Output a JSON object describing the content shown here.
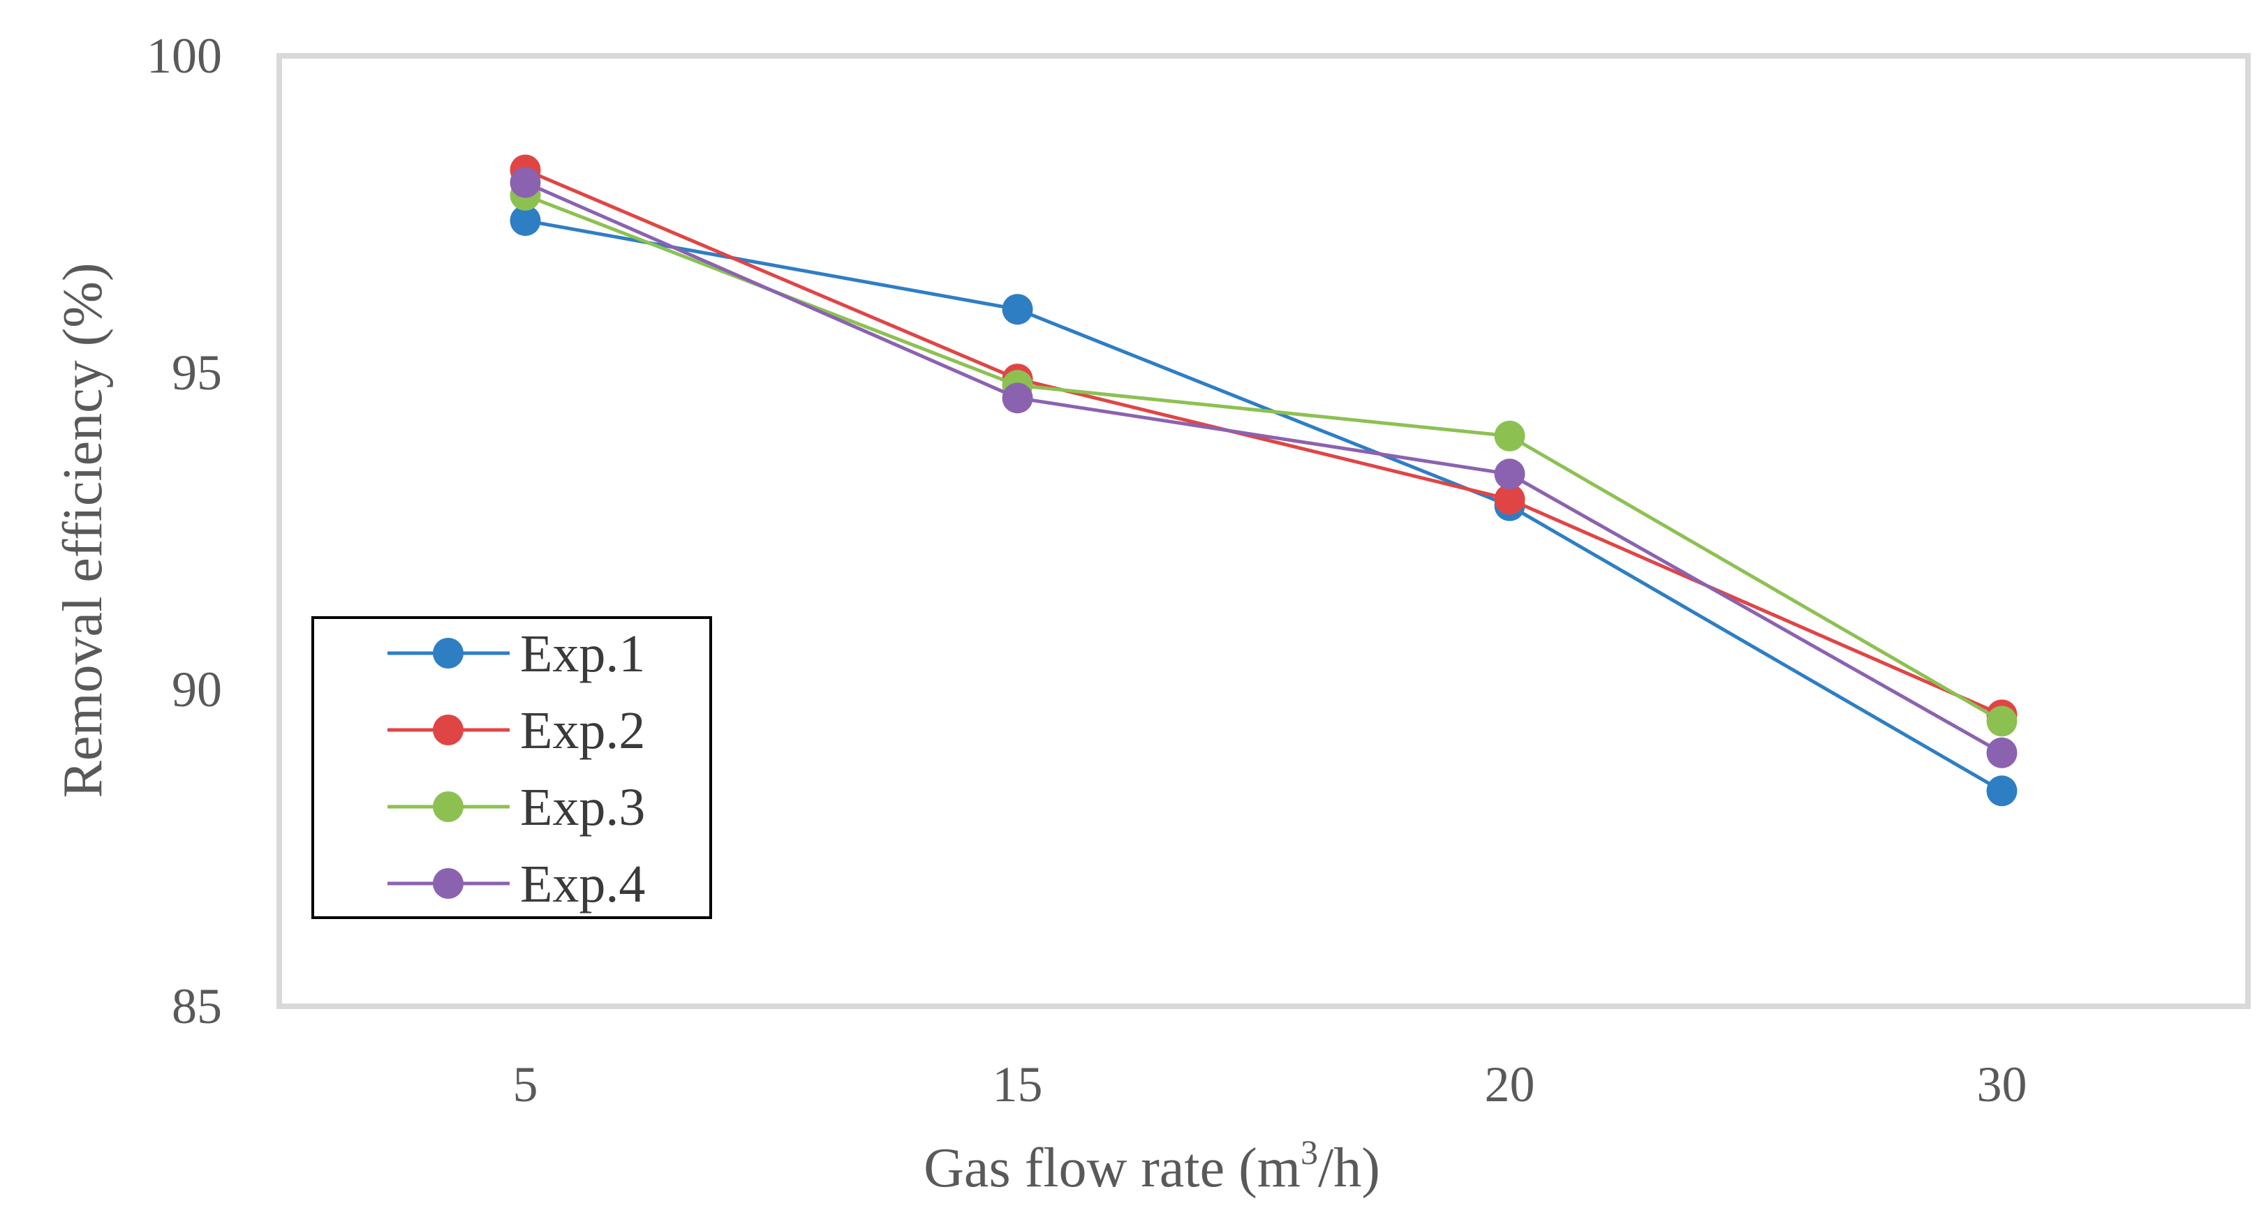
{
  "chart_data": {
    "type": "line",
    "title": "",
    "categories": [
      "5",
      "15",
      "20",
      "30"
    ],
    "xlabel": {
      "prefix": "Gas flow rate (m",
      "superscript": "3",
      "suffix": "/h)"
    },
    "ylabel": "Removal efficiency (%)",
    "ylim": [
      85,
      100
    ],
    "yticks": [
      "85",
      "90",
      "95",
      "100"
    ],
    "legend_position": "left-center",
    "series": [
      {
        "name": "Exp.1",
        "color": "#2E7EC4",
        "values": [
          97.4,
          96.0,
          92.9,
          88.4
        ]
      },
      {
        "name": "Exp.2",
        "color": "#E04545",
        "values": [
          98.2,
          94.9,
          93.0,
          89.6
        ]
      },
      {
        "name": "Exp.3",
        "color": "#8CC152",
        "values": [
          97.8,
          94.8,
          94.0,
          89.5
        ]
      },
      {
        "name": "Exp.4",
        "color": "#8B62B0",
        "values": [
          98.0,
          94.6,
          93.4,
          89.0
        ]
      }
    ]
  }
}
